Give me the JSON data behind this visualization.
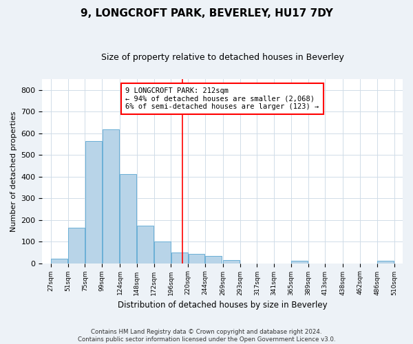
{
  "title": "9, LONGCROFT PARK, BEVERLEY, HU17 7DY",
  "subtitle": "Size of property relative to detached houses in Beverley",
  "xlabel": "Distribution of detached houses by size in Beverley",
  "ylabel": "Number of detached properties",
  "bar_left_edges": [
    27,
    51,
    75,
    99,
    124,
    148,
    172,
    196,
    220,
    244,
    269,
    293,
    317,
    341,
    365,
    389,
    413,
    438,
    462,
    486
  ],
  "bar_heights": [
    20,
    165,
    565,
    620,
    413,
    172,
    100,
    50,
    42,
    35,
    14,
    0,
    0,
    0,
    10,
    0,
    0,
    0,
    0,
    10
  ],
  "tick_labels": [
    "27sqm",
    "51sqm",
    "75sqm",
    "99sqm",
    "124sqm",
    "148sqm",
    "172sqm",
    "196sqm",
    "220sqm",
    "244sqm",
    "269sqm",
    "293sqm",
    "317sqm",
    "341sqm",
    "365sqm",
    "389sqm",
    "413sqm",
    "438sqm",
    "462sqm",
    "486sqm",
    "510sqm"
  ],
  "bar_color": "#b8d4e8",
  "bar_edge_color": "#6aafd6",
  "property_line_x": 212,
  "ylim": [
    0,
    850
  ],
  "yticks": [
    0,
    100,
    200,
    300,
    400,
    500,
    600,
    700,
    800
  ],
  "annotation_title": "9 LONGCROFT PARK: 212sqm",
  "annotation_line1": "← 94% of detached houses are smaller (2,068)",
  "annotation_line2": "6% of semi-detached houses are larger (123) →",
  "footer_line1": "Contains HM Land Registry data © Crown copyright and database right 2024.",
  "footer_line2": "Contains public sector information licensed under the Open Government Licence v3.0.",
  "background_color": "#edf2f7",
  "plot_bg_color": "#ffffff",
  "grid_color": "#d0dce8"
}
